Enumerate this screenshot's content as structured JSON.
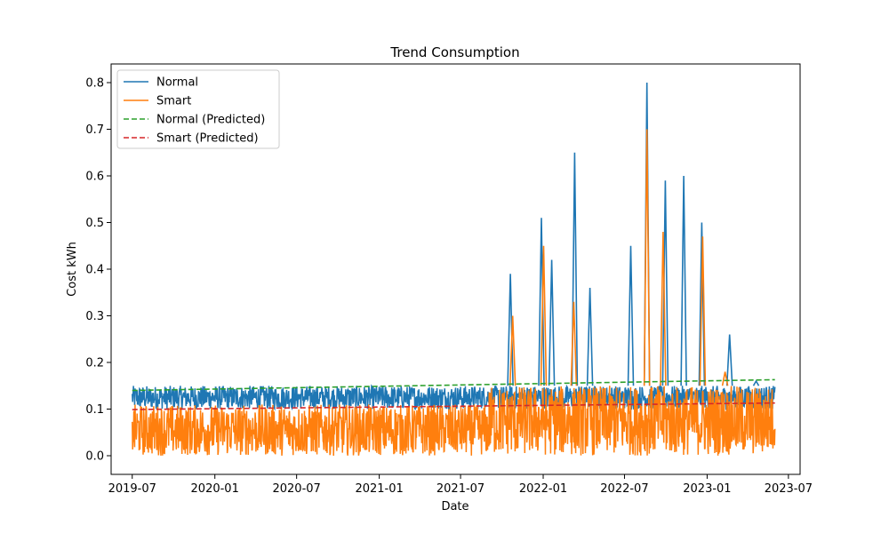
{
  "chart_data": {
    "type": "line",
    "title": "Trend Consumption",
    "xlabel": "Date",
    "ylabel": "Cost kWh",
    "xlim": [
      "2019-05-15",
      "2023-07-27"
    ],
    "ylim": [
      -0.04,
      0.84
    ],
    "x_ticks": [
      "2019-07",
      "2020-01",
      "2020-07",
      "2021-01",
      "2021-07",
      "2022-01",
      "2022-07",
      "2023-01",
      "2023-07"
    ],
    "y_ticks": [
      "0.0",
      "0.1",
      "0.2",
      "0.3",
      "0.4",
      "0.5",
      "0.6",
      "0.7",
      "0.8"
    ],
    "grid": false,
    "legend_position": "top-left",
    "series": [
      {
        "name": "Normal",
        "color": "#1f77b4",
        "style": "solid",
        "segments": [
          {
            "from": "2019-07-01",
            "to": "2021-09-01",
            "low": 0.1,
            "high": 0.15
          },
          {
            "from": "2021-09-01",
            "to": "2023-06-01",
            "low": 0.1,
            "high": 0.15
          }
        ],
        "peaks": [
          {
            "x": "2021-10-20",
            "y": 0.39
          },
          {
            "x": "2021-12-28",
            "y": 0.51
          },
          {
            "x": "2022-01-20",
            "y": 0.42
          },
          {
            "x": "2022-03-12",
            "y": 0.65
          },
          {
            "x": "2022-04-15",
            "y": 0.36
          },
          {
            "x": "2022-07-15",
            "y": 0.45
          },
          {
            "x": "2022-08-20",
            "y": 0.8
          },
          {
            "x": "2022-09-30",
            "y": 0.59
          },
          {
            "x": "2022-11-10",
            "y": 0.6
          },
          {
            "x": "2022-12-20",
            "y": 0.5
          },
          {
            "x": "2023-02-20",
            "y": 0.26
          },
          {
            "x": "2023-04-20",
            "y": 0.16
          }
        ]
      },
      {
        "name": "Smart",
        "color": "#ff7f0e",
        "style": "solid",
        "segments": [
          {
            "from": "2019-07-01",
            "to": "2021-09-01",
            "low": 0.0,
            "high": 0.11
          },
          {
            "from": "2021-09-01",
            "to": "2023-06-01",
            "low": 0.0,
            "high": 0.15
          }
        ],
        "peaks": [
          {
            "x": "2021-10-25",
            "y": 0.3
          },
          {
            "x": "2022-01-02",
            "y": 0.45
          },
          {
            "x": "2022-03-10",
            "y": 0.33
          },
          {
            "x": "2022-08-20",
            "y": 0.7
          },
          {
            "x": "2022-09-25",
            "y": 0.48
          },
          {
            "x": "2022-12-22",
            "y": 0.47
          },
          {
            "x": "2023-02-10",
            "y": 0.18
          }
        ]
      },
      {
        "name": "Normal (Predicted)",
        "color": "#2ca02c",
        "style": "dashed",
        "x": [
          "2019-07-01",
          "2023-06-01"
        ],
        "y": [
          0.14,
          0.163
        ]
      },
      {
        "name": "Smart (Predicted)",
        "color": "#d62728",
        "style": "dashed",
        "x": [
          "2019-07-01",
          "2023-06-01"
        ],
        "y": [
          0.099,
          0.113
        ]
      }
    ]
  }
}
